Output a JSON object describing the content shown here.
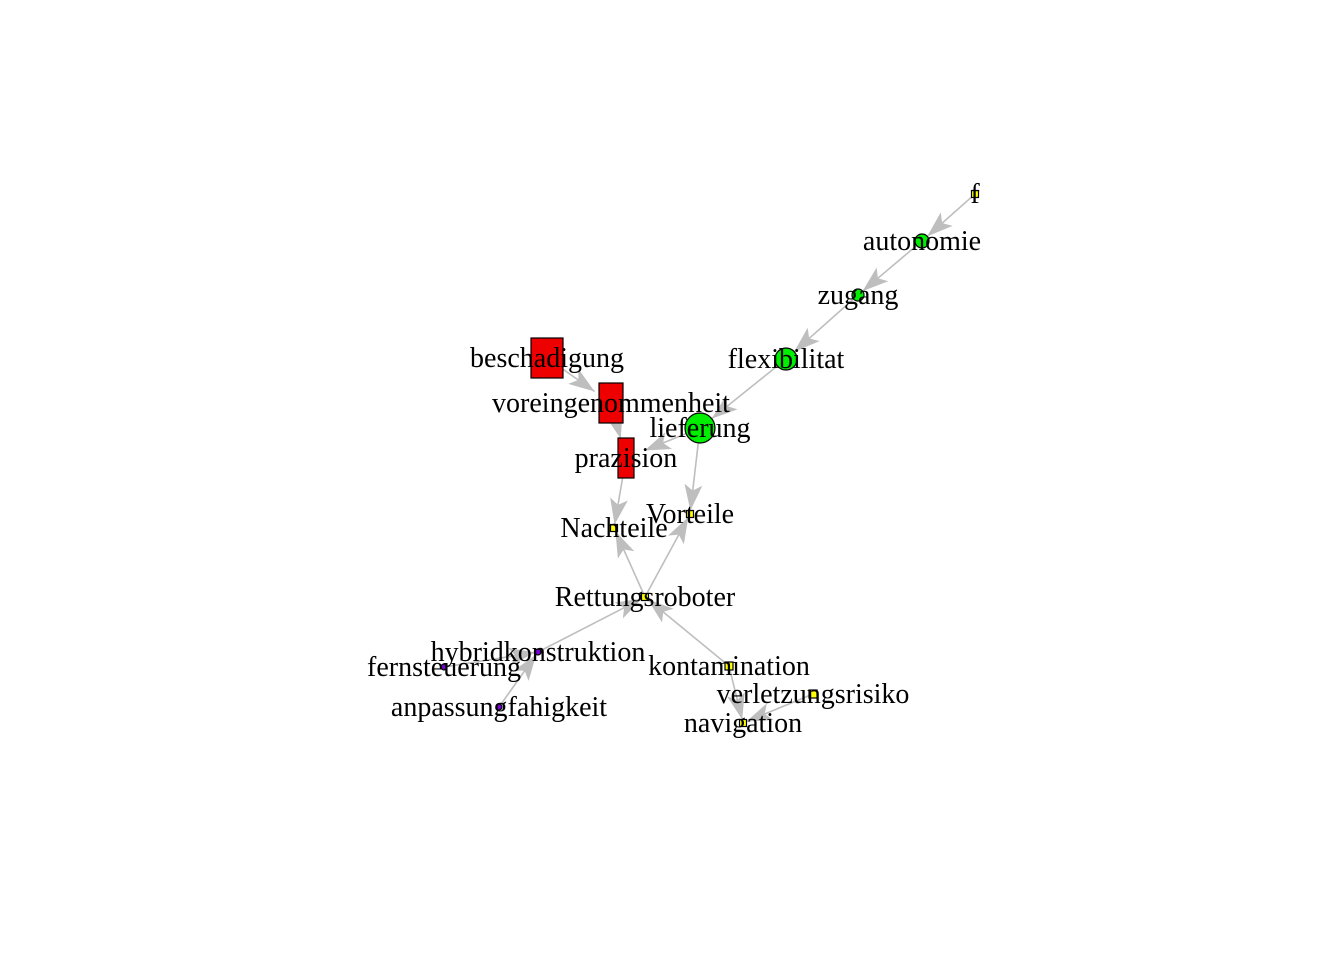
{
  "nodes": [
    {
      "id": "f",
      "label": "f",
      "shape": "square",
      "color": "#FFFF00"
    },
    {
      "id": "autonomie",
      "label": "autonomie",
      "shape": "circle",
      "color": "#00EE00"
    },
    {
      "id": "zugang",
      "label": "zugang",
      "shape": "circle",
      "color": "#00EE00"
    },
    {
      "id": "flexibilitat",
      "label": "flexibilitat",
      "shape": "circle",
      "color": "#00EE00"
    },
    {
      "id": "lieferung",
      "label": "lieferung",
      "shape": "circle",
      "color": "#00EE00"
    },
    {
      "id": "beschadigung",
      "label": "beschadigung",
      "shape": "square",
      "color": "#EE0000"
    },
    {
      "id": "voreingenommenheit",
      "label": "voreingenommenheit",
      "shape": "square",
      "color": "#EE0000"
    },
    {
      "id": "prazision",
      "label": "prazision",
      "shape": "square",
      "color": "#EE0000"
    },
    {
      "id": "Vorteile",
      "label": "Vorteile",
      "shape": "square",
      "color": "#FFFF00"
    },
    {
      "id": "Nachteile",
      "label": "Nachteile",
      "shape": "square",
      "color": "#FFFF00"
    },
    {
      "id": "Rettungsroboter",
      "label": "Rettungsroboter",
      "shape": "square",
      "color": "#FFFF00"
    },
    {
      "id": "hybridkonstruktion",
      "label": "hybridkonstruktion",
      "shape": "circle",
      "color": "#7B00D6"
    },
    {
      "id": "fernsteuerung",
      "label": "fernsteuerung",
      "shape": "circle",
      "color": "#7B00D6"
    },
    {
      "id": "anpassungfahigkeit",
      "label": "anpassungfahigkeit",
      "shape": "circle",
      "color": "#7B00D6"
    },
    {
      "id": "kontamination",
      "label": "kontamination",
      "shape": "square",
      "color": "#FFFF00"
    },
    {
      "id": "verletzungsrisiko",
      "label": "verletzungsrisiko",
      "shape": "square",
      "color": "#FFFF00"
    },
    {
      "id": "navigation",
      "label": "navigation",
      "shape": "square",
      "color": "#FFFF00"
    }
  ],
  "edges": [
    {
      "from": "f",
      "to": "autonomie"
    },
    {
      "from": "autonomie",
      "to": "zugang"
    },
    {
      "from": "zugang",
      "to": "flexibilitat"
    },
    {
      "from": "flexibilitat",
      "to": "lieferung"
    },
    {
      "from": "beschadigung",
      "to": "voreingenommenheit"
    },
    {
      "from": "voreingenommenheit",
      "to": "prazision"
    },
    {
      "from": "lieferung",
      "to": "prazision"
    },
    {
      "from": "lieferung",
      "to": "Vorteile"
    },
    {
      "from": "prazision",
      "to": "Nachteile"
    },
    {
      "from": "Rettungsroboter",
      "to": "Nachteile"
    },
    {
      "from": "Rettungsroboter",
      "to": "Vorteile"
    },
    {
      "from": "hybridkonstruktion",
      "to": "Rettungsroboter"
    },
    {
      "from": "fernsteuerung",
      "to": "hybridkonstruktion"
    },
    {
      "from": "anpassungfahigkeit",
      "to": "hybridkonstruktion"
    },
    {
      "from": "kontamination",
      "to": "Rettungsroboter"
    },
    {
      "from": "verletzungsrisiko",
      "to": "navigation"
    },
    {
      "from": "kontamination",
      "to": "navigation"
    }
  ],
  "colors": {
    "edge": "#BEBEBE",
    "node_border": "#000000",
    "label": "#000000"
  }
}
